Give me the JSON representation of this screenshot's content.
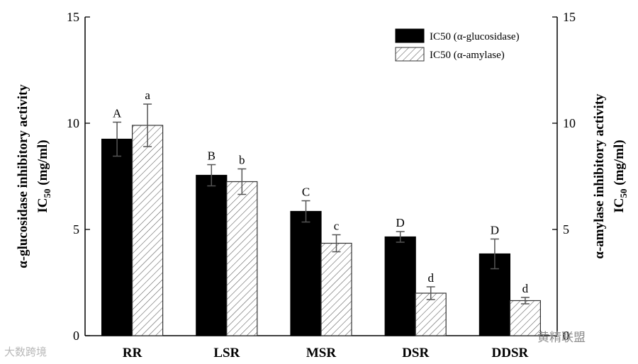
{
  "chart_data": {
    "type": "bar",
    "categories": [
      "RR",
      "LSR",
      "MSR",
      "DSR",
      "DDSR"
    ],
    "series": [
      {
        "name": "IC50 (α-glucosidase)",
        "pattern": "solid",
        "color": "#000000",
        "values": [
          9.25,
          7.55,
          5.85,
          4.65,
          3.85
        ],
        "errors": [
          0.8,
          0.5,
          0.5,
          0.25,
          0.7
        ],
        "letters": [
          "A",
          "B",
          "C",
          "D",
          "D"
        ]
      },
      {
        "name": "IC50 (α-amylase)",
        "pattern": "hatched",
        "color": "#ffffff",
        "values": [
          9.9,
          7.25,
          4.35,
          2.0,
          1.65
        ],
        "errors": [
          1.0,
          0.6,
          0.4,
          0.3,
          0.15
        ],
        "letters": [
          "a",
          "b",
          "c",
          "d",
          "d"
        ]
      }
    ],
    "ylim": [
      0,
      15
    ],
    "yticks": [
      0,
      5,
      10,
      15
    ],
    "ylabel_left": {
      "line1": "α-glucosidase  inhibitory activity",
      "line2_main": "IC",
      "line2_sub": "50",
      "line2_unit": " (mg/ml)"
    },
    "ylabel_right": {
      "line1": "α-amylase  inhibitory activity",
      "line2_main": "IC",
      "line2_sub": "50",
      "line2_unit": " (mg/ml)"
    },
    "legend_position": "top-right"
  },
  "watermarks": {
    "left": "大数跨境",
    "right": "黄精联盟"
  }
}
